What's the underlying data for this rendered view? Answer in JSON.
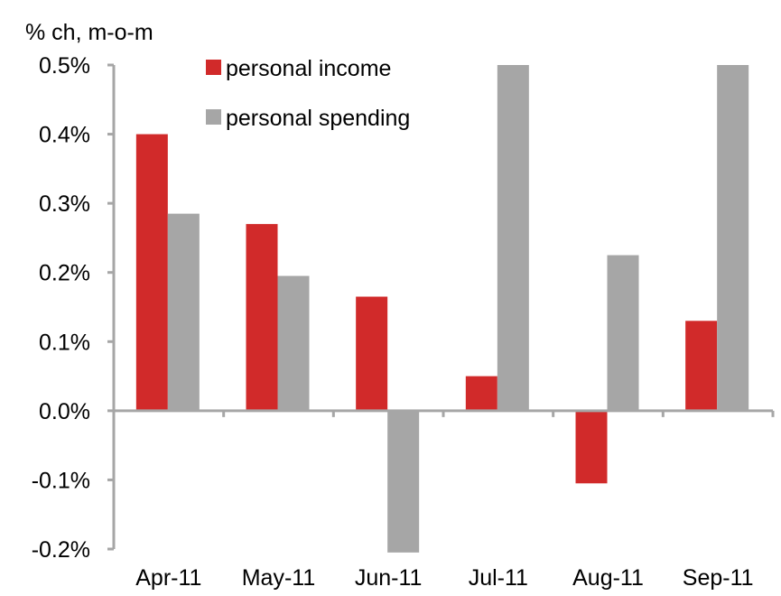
{
  "chart_data": {
    "type": "bar",
    "title": "",
    "unit_label": "% ch, m-o-m",
    "xlabel": "",
    "ylabel": "",
    "categories": [
      "Apr-11",
      "May-11",
      "Jun-11",
      "Jul-11",
      "Aug-11",
      "Sep-11"
    ],
    "series": [
      {
        "name": "personal income",
        "color": "#d12a2a",
        "values": [
          0.4,
          0.27,
          0.165,
          0.05,
          -0.105,
          0.13
        ]
      },
      {
        "name": "personal spending",
        "color": "#a6a6a6",
        "values": [
          0.285,
          0.195,
          -0.205,
          0.5,
          0.225,
          0.5
        ]
      }
    ],
    "ylim": [
      -0.2,
      0.5
    ],
    "yticks": [
      {
        "value": 0.5,
        "label": "0.5%"
      },
      {
        "value": 0.4,
        "label": "0.4%"
      },
      {
        "value": 0.3,
        "label": "0.3%"
      },
      {
        "value": 0.2,
        "label": "0.2%"
      },
      {
        "value": 0.1,
        "label": "0.1%"
      },
      {
        "value": 0.0,
        "label": "0.0%"
      },
      {
        "value": -0.1,
        "label": "-0.1%"
      },
      {
        "value": -0.2,
        "label": "-0.2%"
      }
    ],
    "grid": false,
    "legend": "top-center",
    "axis_color": "#a6a6a6"
  }
}
